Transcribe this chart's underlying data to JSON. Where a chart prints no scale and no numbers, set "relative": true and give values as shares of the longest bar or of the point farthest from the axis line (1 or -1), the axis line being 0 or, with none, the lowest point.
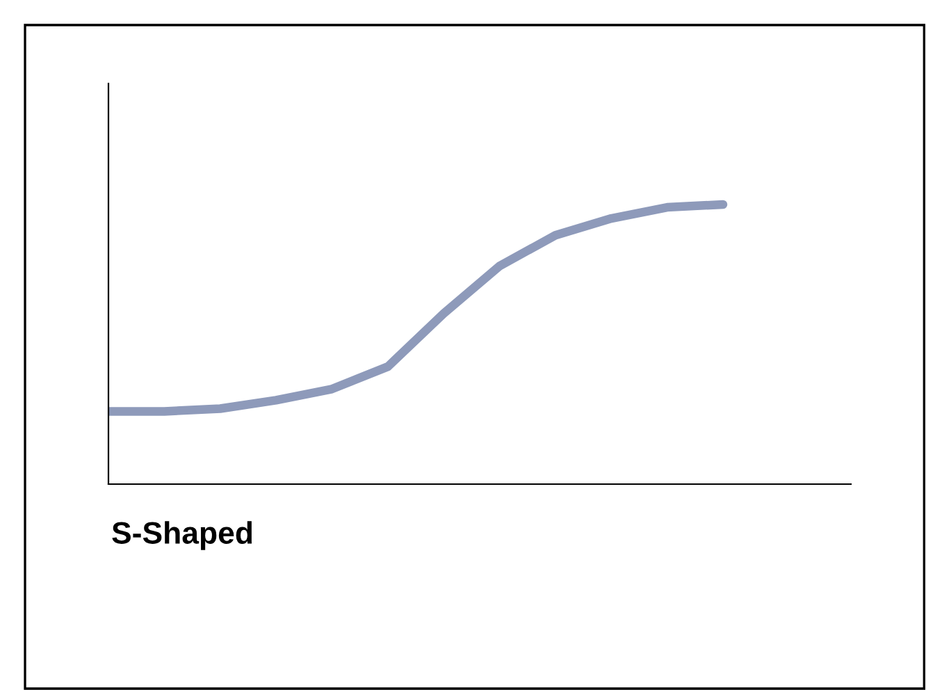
{
  "chart_data": {
    "type": "line",
    "title": "S-Shaped",
    "relative": true,
    "categories": [
      null,
      null,
      null,
      null,
      null,
      null,
      null,
      null,
      null,
      null,
      null,
      null
    ],
    "series": [
      {
        "color": "#8e9aba",
        "values": [
          0.26,
          0.26,
          0.27,
          0.3,
          0.34,
          0.42,
          0.61,
          0.78,
          0.89,
          0.95,
          0.99,
          1.0
        ]
      }
    ],
    "marker": "none",
    "line_style": "solid"
  }
}
